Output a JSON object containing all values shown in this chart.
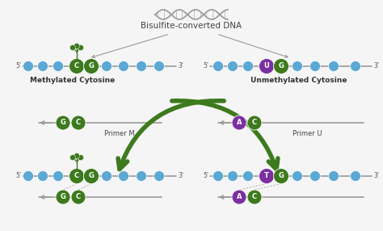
{
  "bg_color": "#f5f5f5",
  "title": "Bisulfite-converted DNA",
  "title_fontsize": 7.5,
  "strand_color": "#999999",
  "bead_color": "#5ba8d5",
  "green_circle_color": "#3d7a1e",
  "purple_circle_color": "#7b2fa0",
  "arrow_color": "#3d7a1e",
  "label_methylated": "Methylated Cytosine",
  "label_unmethylated": "Unmethylated Cytosine",
  "label_primer_m": "Primer M",
  "label_primer_u": "Primer U",
  "label_fontsize": 6.5,
  "primer_label_fontsize": 6.0,
  "circle_letter_fontsize": 5.5,
  "tick_fontsize": 5.5,
  "helix_color": "#999999"
}
